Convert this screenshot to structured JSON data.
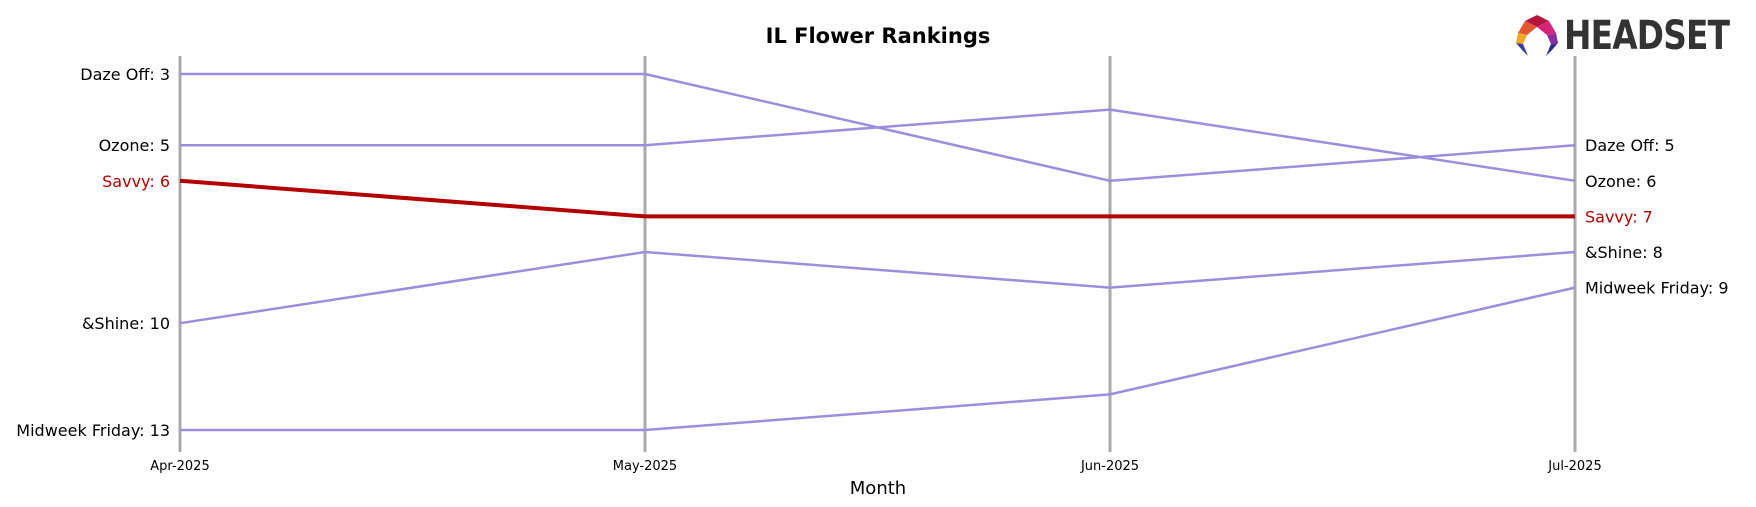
{
  "brand": {
    "name": "HEADSET"
  },
  "chart_data": {
    "type": "line",
    "title": "IL Flower Rankings",
    "xlabel": "Month",
    "ylabel": "",
    "x": [
      "Apr-2025",
      "May-2025",
      "Jun-2025",
      "Jul-2025"
    ],
    "y_inverted": true,
    "ylim": [
      3,
      13
    ],
    "grid": "vertical",
    "highlight_color": "#b30000",
    "series_color": "#9a8fdc",
    "series": [
      {
        "name": "Daze Off",
        "values": [
          3,
          3,
          6,
          5
        ],
        "highlight": false
      },
      {
        "name": "Ozone",
        "values": [
          5,
          5,
          4,
          6
        ],
        "highlight": false
      },
      {
        "name": "Savvy",
        "values": [
          6,
          7,
          7,
          7
        ],
        "highlight": true
      },
      {
        "name": "&Shine",
        "values": [
          10,
          8,
          9,
          8
        ],
        "highlight": false
      },
      {
        "name": "Midweek Friday",
        "values": [
          13,
          13,
          12,
          9
        ],
        "highlight": false
      }
    ],
    "start_labels": [
      "Daze Off: 3",
      "Ozone: 5",
      "Savvy: 6",
      "&Shine: 10",
      "Midweek Friday: 13"
    ],
    "end_labels": [
      "Daze Off: 5",
      "Ozone: 6",
      "Savvy: 7",
      "&Shine: 8",
      "Midweek Friday: 9"
    ]
  }
}
